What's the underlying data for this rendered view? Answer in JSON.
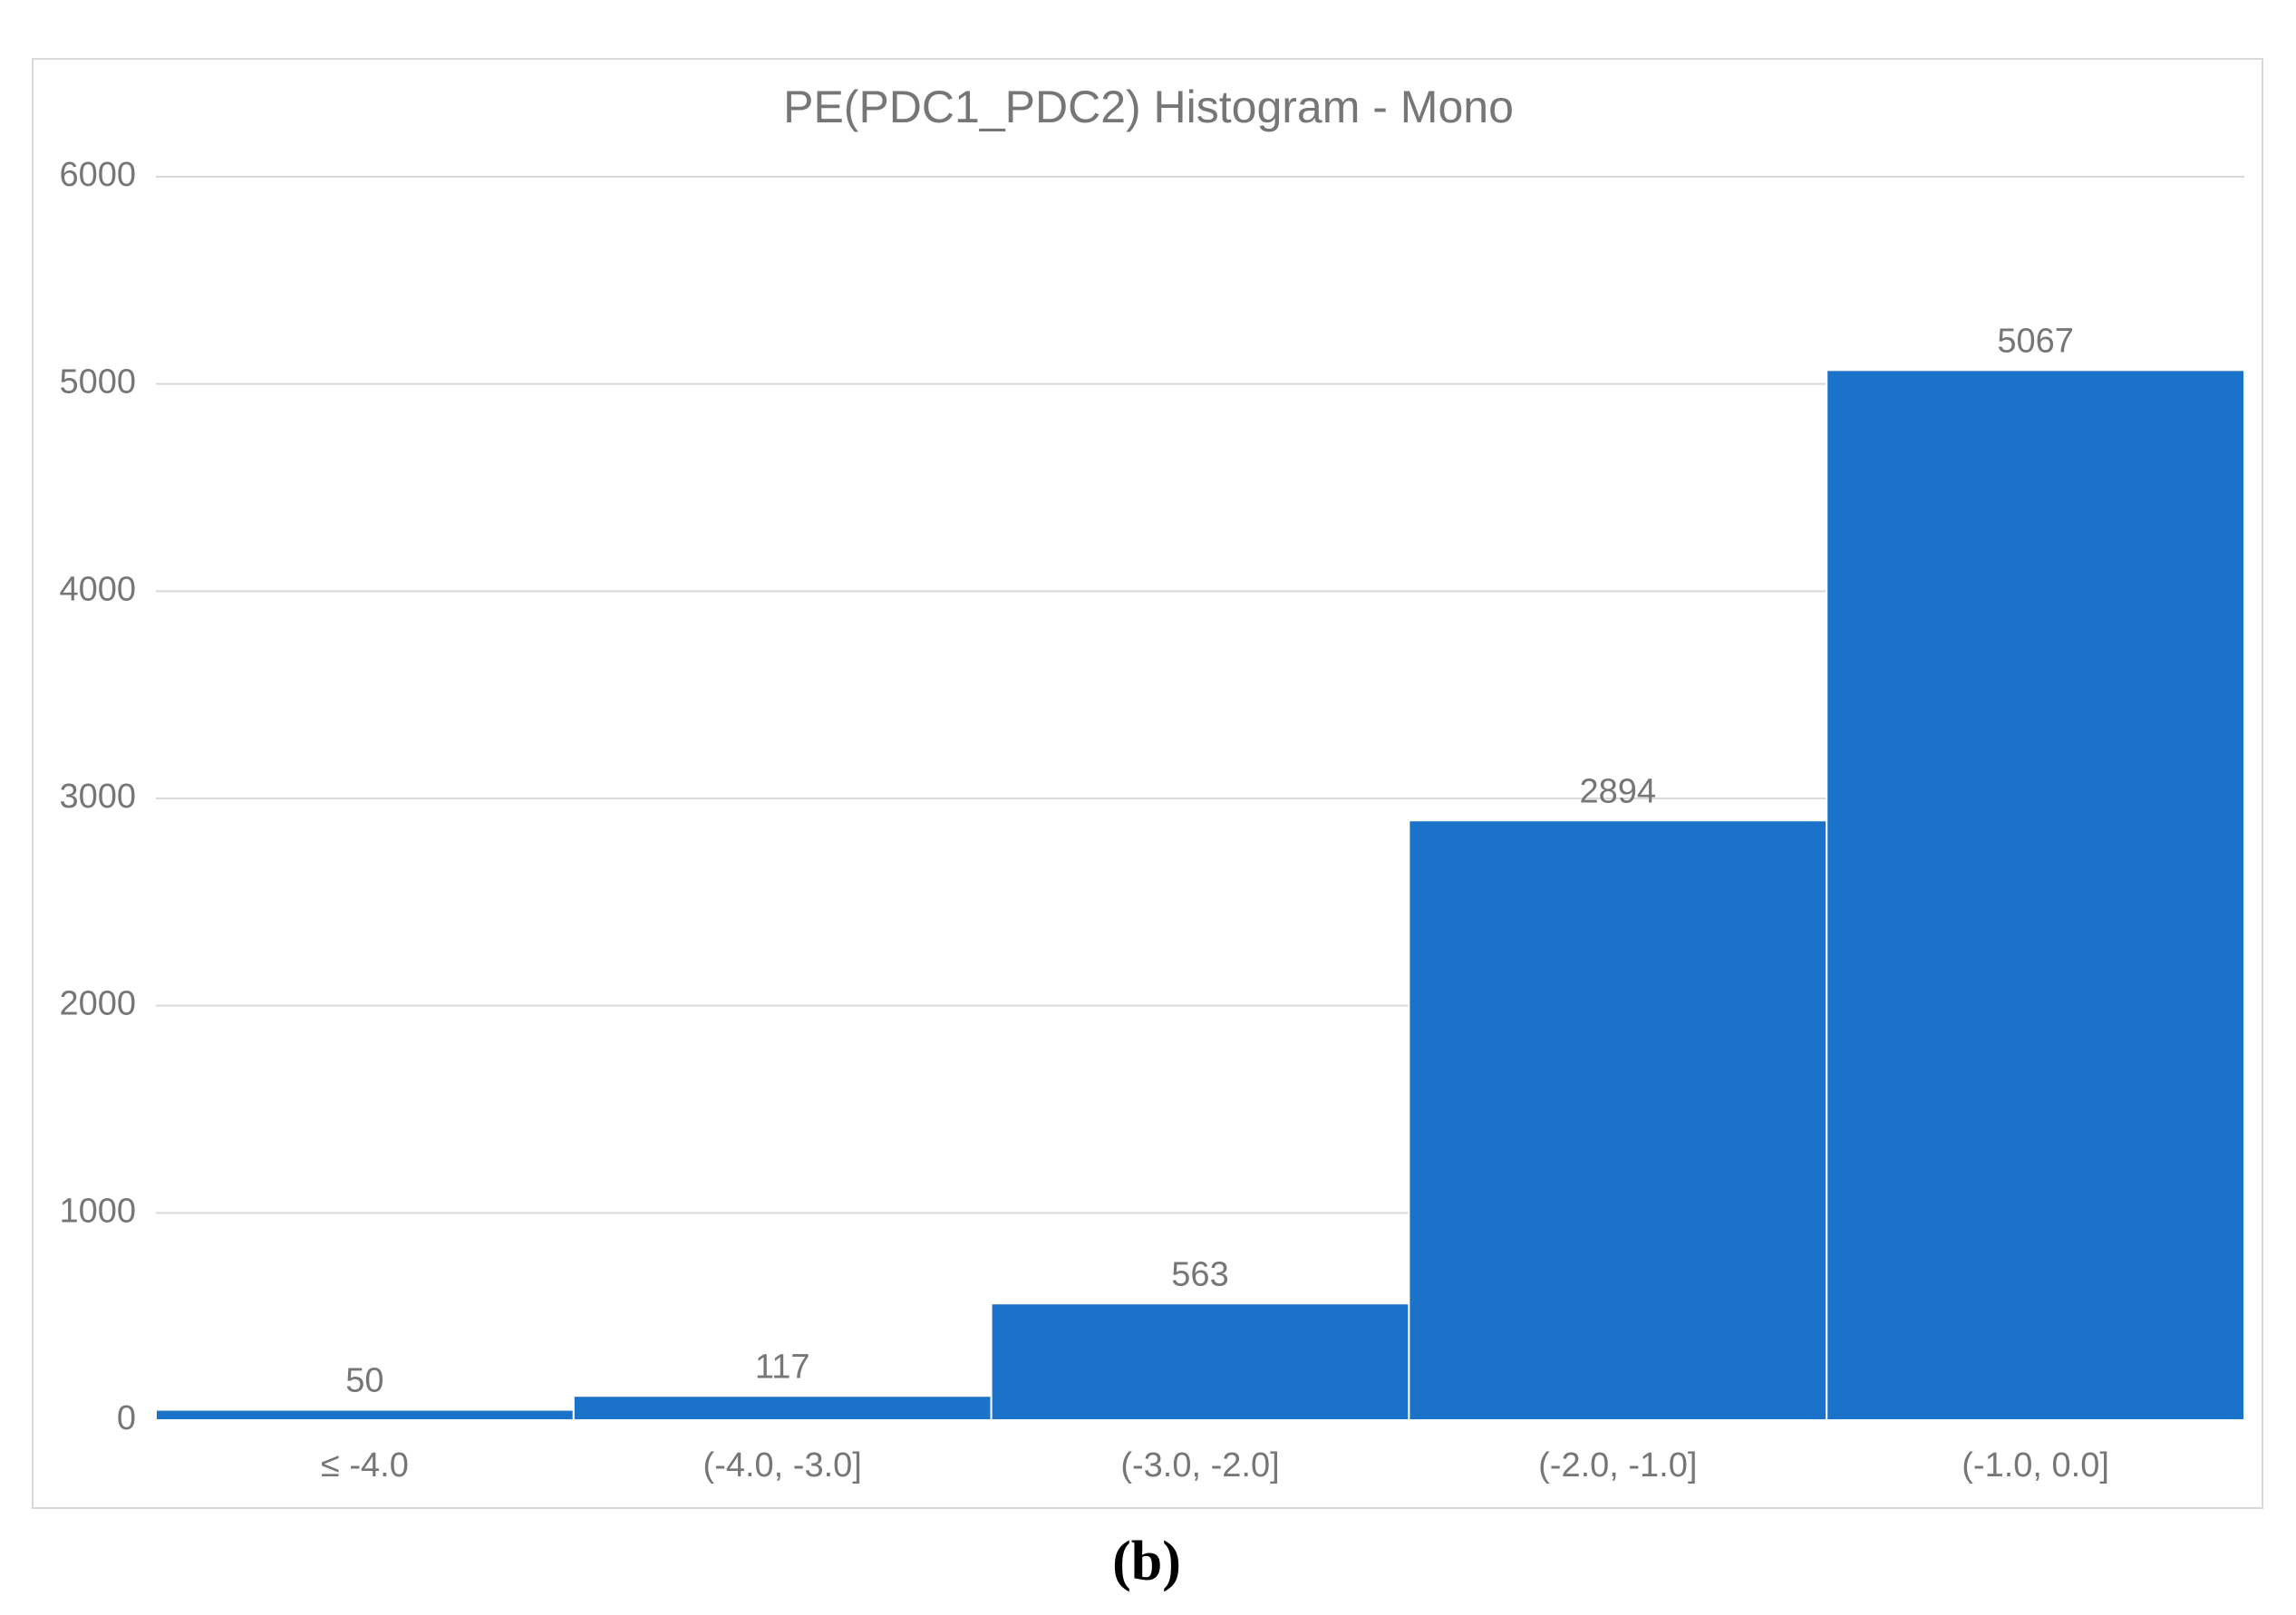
{
  "chart_data": {
    "type": "bar",
    "title": "PE(PDC1_PDC2) Histogram - Mono",
    "categories": [
      "≤ -4.0",
      "(-4.0, -3.0]",
      "(-3.0, -2.0]",
      "(-2.0, -1.0]",
      "(-1.0, 0.0]"
    ],
    "values": [
      50,
      117,
      563,
      2894,
      5067
    ],
    "color": "#1b72c9",
    "ylim": [
      0,
      6000
    ],
    "yticks": [
      0,
      1000,
      2000,
      3000,
      4000,
      5000,
      6000
    ],
    "grid": true
  },
  "caption": "(b)"
}
